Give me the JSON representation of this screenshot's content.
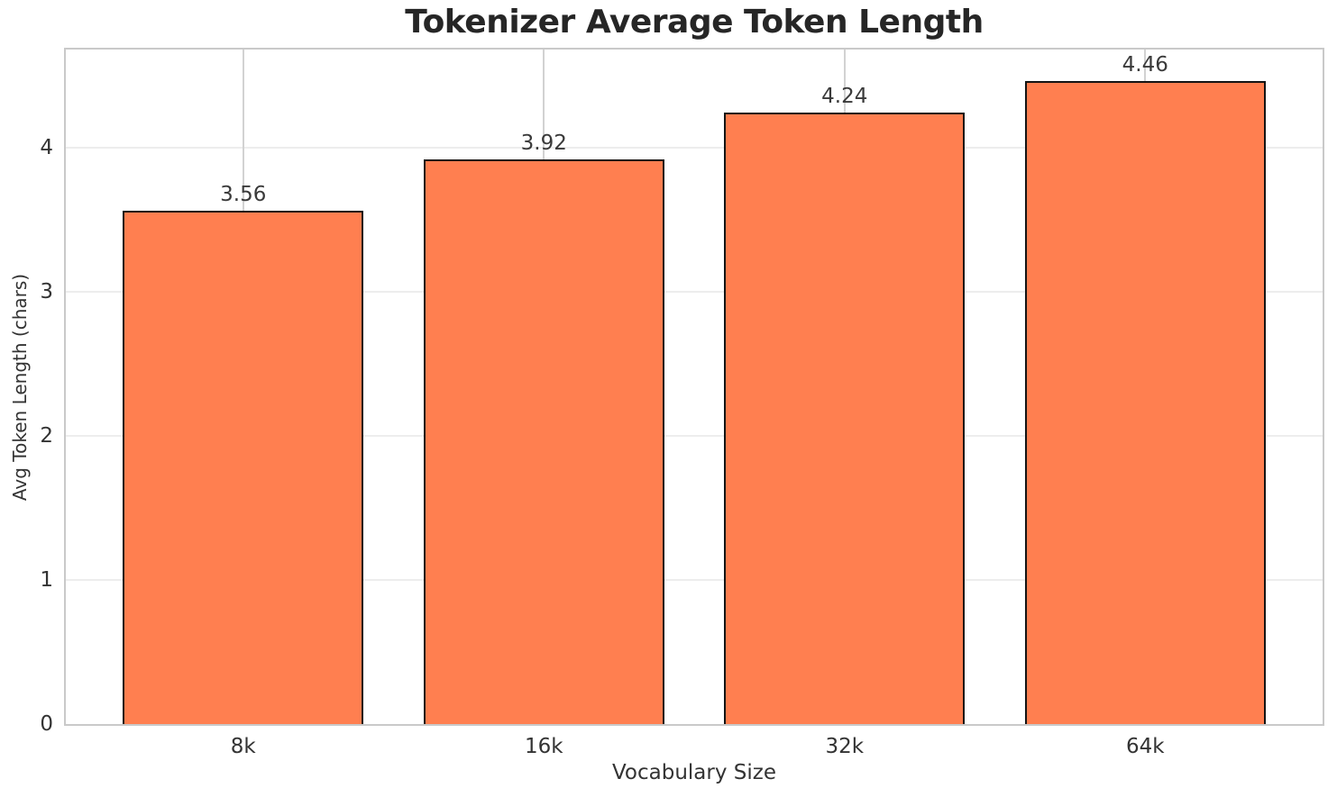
{
  "chart_data": {
    "type": "bar",
    "title": "Tokenizer Average Token Length",
    "xlabel": "Vocabulary Size",
    "ylabel": "Avg Token Length (chars)",
    "categories": [
      "8k",
      "16k",
      "32k",
      "64k"
    ],
    "values": [
      3.56,
      3.92,
      4.24,
      4.46
    ],
    "value_labels": [
      "3.56",
      "3.92",
      "4.24",
      "4.46"
    ],
    "yticks": [
      0,
      1,
      2,
      3,
      4
    ],
    "ylim": [
      0,
      4.68
    ],
    "xlim": [
      -0.59,
      3.59
    ],
    "bar_width": 0.8,
    "grid": "both",
    "legend": "none",
    "colors": {
      "bar_fill": "#ff7f50",
      "bar_edge": "#141414",
      "grid_horizontal": "#ededed",
      "grid_vertical": "#d2d2d2",
      "spine": "#c9c9c9",
      "title_text": "#262626",
      "label_text": "#333333"
    }
  }
}
